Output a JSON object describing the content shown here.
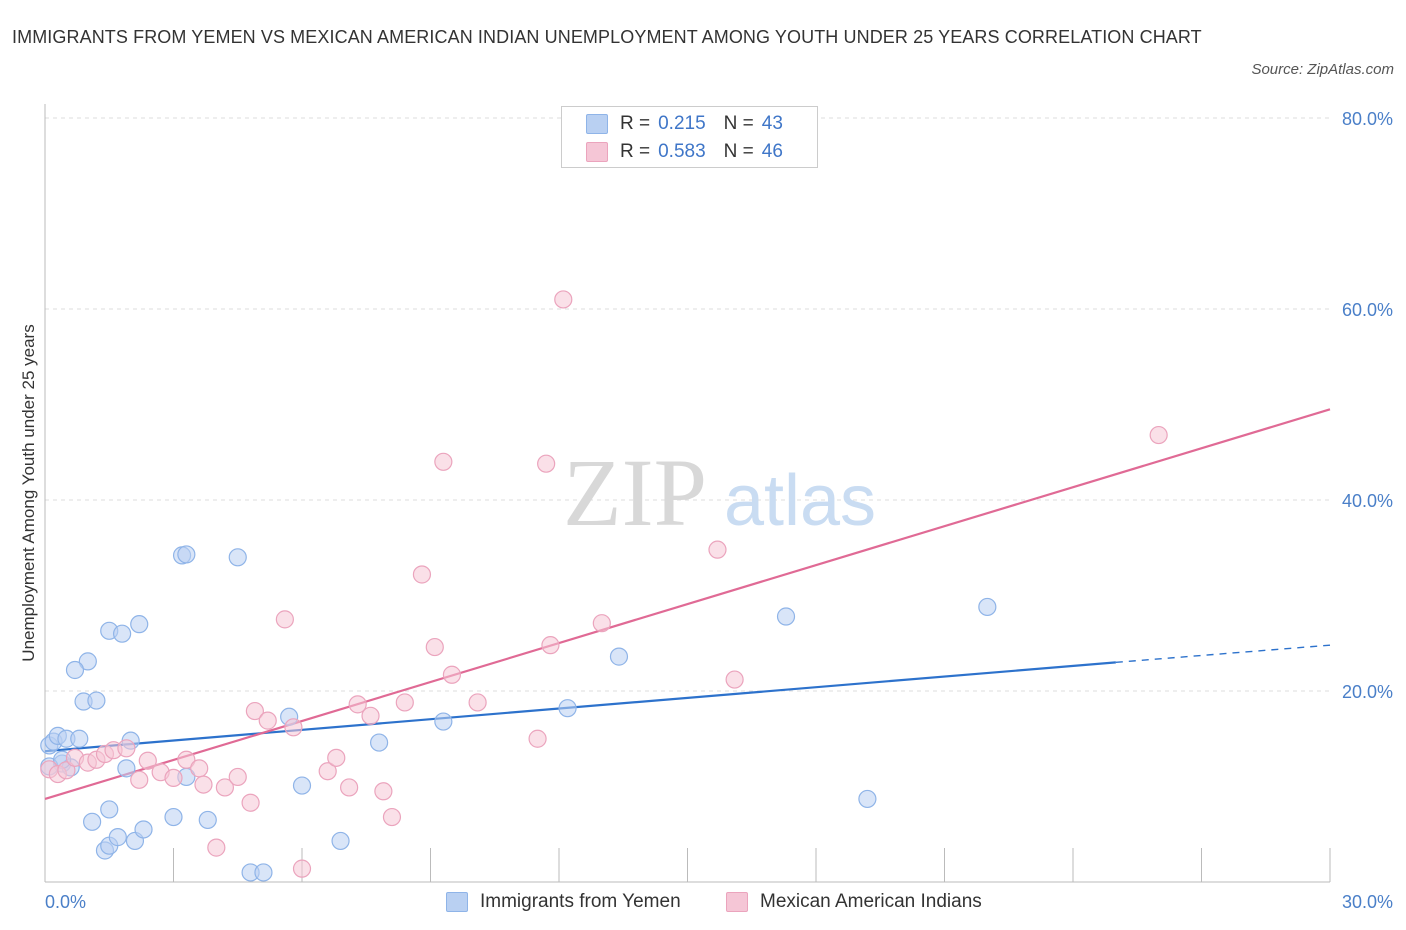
{
  "title": "IMMIGRANTS FROM YEMEN VS MEXICAN AMERICAN INDIAN UNEMPLOYMENT AMONG YOUTH UNDER 25 YEARS CORRELATION CHART",
  "source": "Source: ZipAtlas.com",
  "watermark": {
    "zip": "ZIP",
    "atlas": "atlas"
  },
  "legend": {
    "rows": [
      {
        "r_label": "R =",
        "r_value": "0.215",
        "n_label": "N =",
        "n_value": "43"
      },
      {
        "r_label": "R =",
        "r_value": "0.583",
        "n_label": "N =",
        "n_value": "46"
      }
    ]
  },
  "chart_data": {
    "type": "scatter",
    "xlabel": "",
    "ylabel": "Unemployment Among Youth under 25 years",
    "xlim": [
      0,
      30
    ],
    "ylim": [
      0,
      80
    ],
    "x_tick_labels": [
      "0.0%",
      "30.0%"
    ],
    "y_ticks": [
      20,
      40,
      60,
      80
    ],
    "y_tick_labels": [
      "20.0%",
      "40.0%",
      "60.0%",
      "80.0%"
    ],
    "grid": true,
    "legend_position": "top-center",
    "series": [
      {
        "name": "Immigrants from Yemen",
        "color": "#8fb4e8",
        "fill": "#b9d0f2",
        "line_color": "#2d72cc",
        "trend": {
          "x0": 0,
          "y0": 13.7,
          "x1": 25,
          "y1": 23.0,
          "dashed_to_x": 30,
          "dashed_to_y": 24.8
        },
        "points": [
          [
            0.1,
            14.3
          ],
          [
            0.2,
            14.7
          ],
          [
            0.3,
            15.3
          ],
          [
            0.4,
            12.4
          ],
          [
            0.5,
            15.0
          ],
          [
            0.6,
            12.0
          ],
          [
            0.8,
            15.0
          ],
          [
            0.9,
            18.9
          ],
          [
            1.0,
            23.1
          ],
          [
            1.2,
            19.0
          ],
          [
            0.7,
            22.2
          ],
          [
            1.5,
            26.3
          ],
          [
            1.8,
            26.0
          ],
          [
            2.2,
            27.0
          ],
          [
            1.1,
            6.3
          ],
          [
            1.4,
            3.3
          ],
          [
            1.5,
            3.8
          ],
          [
            1.5,
            7.6
          ],
          [
            1.7,
            4.7
          ],
          [
            2.0,
            14.8
          ],
          [
            1.9,
            11.9
          ],
          [
            2.1,
            4.3
          ],
          [
            2.3,
            5.5
          ],
          [
            3.0,
            6.8
          ],
          [
            3.2,
            34.2
          ],
          [
            3.3,
            34.3
          ],
          [
            3.3,
            11.0
          ],
          [
            3.8,
            6.5
          ],
          [
            4.5,
            34.0
          ],
          [
            4.8,
            1.0
          ],
          [
            5.1,
            1.0
          ],
          [
            5.7,
            17.3
          ],
          [
            6.0,
            10.1
          ],
          [
            6.9,
            4.3
          ],
          [
            7.8,
            14.6
          ],
          [
            9.3,
            16.8
          ],
          [
            12.2,
            18.2
          ],
          [
            13.4,
            23.6
          ],
          [
            17.3,
            27.8
          ],
          [
            19.2,
            8.7
          ],
          [
            22.0,
            28.8
          ],
          [
            0.1,
            12.1
          ],
          [
            0.4,
            12.8
          ]
        ]
      },
      {
        "name": "Mexican American Indians",
        "color": "#eba4bd",
        "fill": "#f5c6d6",
        "line_color": "#e06a95",
        "trend": {
          "x0": 0,
          "y0": 8.7,
          "x1": 30,
          "y1": 49.5
        },
        "points": [
          [
            0.1,
            11.8
          ],
          [
            0.3,
            11.3
          ],
          [
            0.5,
            11.7
          ],
          [
            0.7,
            13.0
          ],
          [
            1.0,
            12.5
          ],
          [
            1.2,
            12.8
          ],
          [
            1.4,
            13.4
          ],
          [
            1.6,
            13.8
          ],
          [
            1.9,
            14.0
          ],
          [
            2.2,
            10.7
          ],
          [
            2.4,
            12.7
          ],
          [
            2.7,
            11.5
          ],
          [
            3.0,
            10.9
          ],
          [
            3.3,
            12.8
          ],
          [
            3.6,
            11.9
          ],
          [
            3.7,
            10.2
          ],
          [
            4.0,
            3.6
          ],
          [
            4.2,
            9.9
          ],
          [
            4.5,
            11.0
          ],
          [
            4.8,
            8.3
          ],
          [
            4.9,
            17.9
          ],
          [
            5.2,
            16.9
          ],
          [
            5.6,
            27.5
          ],
          [
            5.8,
            16.2
          ],
          [
            6.0,
            1.4
          ],
          [
            6.6,
            11.6
          ],
          [
            6.8,
            13.0
          ],
          [
            7.1,
            9.9
          ],
          [
            7.3,
            18.6
          ],
          [
            7.6,
            17.4
          ],
          [
            7.9,
            9.5
          ],
          [
            8.1,
            6.8
          ],
          [
            8.4,
            18.8
          ],
          [
            8.8,
            32.2
          ],
          [
            9.1,
            24.6
          ],
          [
            9.3,
            44.0
          ],
          [
            9.5,
            21.7
          ],
          [
            10.1,
            18.8
          ],
          [
            11.5,
            15.0
          ],
          [
            11.7,
            43.8
          ],
          [
            11.8,
            24.8
          ],
          [
            12.1,
            61.0
          ],
          [
            13.0,
            27.1
          ],
          [
            15.7,
            34.8
          ],
          [
            16.1,
            21.2
          ],
          [
            26.0,
            46.8
          ]
        ]
      }
    ]
  }
}
